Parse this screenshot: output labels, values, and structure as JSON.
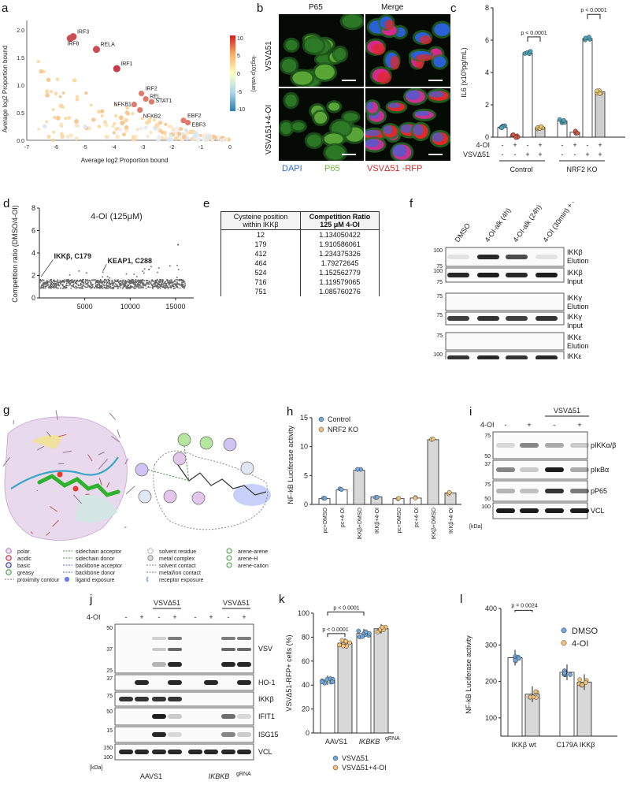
{
  "panel_labels": {
    "a": "a",
    "b": "b",
    "c": "c",
    "d": "d",
    "e": "e",
    "f": "f",
    "g": "g",
    "h": "h",
    "i": "i",
    "j": "j",
    "k": "k",
    "l": "l"
  },
  "panel_a": {
    "xlabel": "Average log2 Proportion bound",
    "ylabel": "Average log2 Proportion bound",
    "colorbar_label": "-log10(p-value)",
    "colorbar_ticks": [
      "10",
      "5",
      "0",
      "-5",
      "-10"
    ],
    "xticks": [
      "-7",
      "-6",
      "-5",
      "-4",
      "-3",
      "-2",
      "-1",
      "0"
    ],
    "yticks": [
      "0.0",
      "0.5",
      "1.0",
      "1.5",
      "2.0"
    ],
    "highlighted": [
      {
        "name": "IRF3",
        "x": -5.4,
        "y": 1.88
      },
      {
        "name": "IRF8",
        "x": -5.5,
        "y": 1.85
      },
      {
        "name": "RELA",
        "x": -4.6,
        "y": 1.65
      },
      {
        "name": "IRF1",
        "x": -3.9,
        "y": 1.3
      },
      {
        "name": "IRF2",
        "x": -3.05,
        "y": 0.85
      },
      {
        "name": "REL",
        "x": -2.9,
        "y": 0.75
      },
      {
        "name": "STAT1",
        "x": -2.7,
        "y": 0.7
      },
      {
        "name": "NFKB1",
        "x": -3.3,
        "y": 0.65
      },
      {
        "name": "NFKB2",
        "x": -3.1,
        "y": 0.55
      },
      {
        "name": "EBF2",
        "x": -1.6,
        "y": 0.36
      },
      {
        "name": "EBF3",
        "x": -1.45,
        "y": 0.32
      }
    ]
  },
  "panel_b": {
    "col_headers": [
      "P65",
      "Merge"
    ],
    "row_labels": [
      "VSVΔ51",
      "VSVΔ51+4-OI"
    ],
    "legend": [
      "DAPI",
      "P65",
      "VSVΔ51 -RFP"
    ],
    "legend_colors": [
      "#2f6fd6",
      "#6cbb3c",
      "#d42a2a"
    ]
  },
  "panel_c": {
    "chart_data": {
      "type": "bar",
      "ylabel": "IL6 (x10³pg/mL)",
      "ylim": [
        0,
        8
      ],
      "yticks": [
        "0",
        "2",
        "4",
        "6",
        "8"
      ],
      "groups": [
        "Control",
        "NRF2 KO"
      ],
      "row_labels": [
        "4-OI",
        "VSVΔ51"
      ],
      "treat_4OI": [
        "-",
        "+",
        "-",
        "+",
        "-",
        "+",
        "-",
        "+"
      ],
      "treat_VSV": [
        "-",
        "-",
        "+",
        "+",
        "-",
        "-",
        "+",
        "+"
      ],
      "values": [
        0.6,
        0.05,
        5.2,
        0.6,
        1.0,
        0.3,
        6.1,
        2.8
      ],
      "bar_fill": [
        "#ffffff",
        "#ffffff",
        "#ffffff",
        "#cfcfcf",
        "#ffffff",
        "#ffffff",
        "#ffffff",
        "#cfcfcf"
      ],
      "annotations": [
        "p < 0.0001",
        "p < 0.0001"
      ]
    }
  },
  "panel_d": {
    "chart_data": {
      "type": "scatter",
      "title": "4-OI (125μM)",
      "ylabel": "Competition ratio (DMSO/4-OI)",
      "ylim": [
        0,
        8
      ],
      "xlim": [
        0,
        17000
      ],
      "yticks": [
        "0",
        "2",
        "4",
        "6",
        "8"
      ],
      "xticks": [
        "5000",
        "10000",
        "15000"
      ],
      "annotations": [
        {
          "text": "IKKβ, C179",
          "x": 200,
          "y": 1.91
        },
        {
          "text": "KEAP1, C288",
          "x": 7000,
          "y": 2.4
        }
      ]
    }
  },
  "panel_e": {
    "chart_data": {
      "type": "table",
      "headers": [
        "Cysteine position within IKKβ",
        "Competition Ratio 125 μM 4-OI"
      ],
      "rows": [
        [
          "12",
          "1.134050422"
        ],
        [
          "179",
          "1.910586061"
        ],
        [
          "412",
          "1.234375326"
        ],
        [
          "464",
          "1.79272645"
        ],
        [
          "524",
          "1.152562779"
        ],
        [
          "716",
          "1.119579065"
        ],
        [
          "751",
          "1.085760276"
        ]
      ]
    }
  },
  "panel_f": {
    "lanes": [
      "DMSO",
      "4-OI-alk (4h)",
      "4-OI-alk (24h)",
      "4-OI (30min) + 4-OI-alk (4h)"
    ],
    "blots": [
      {
        "name": "IKKβ",
        "sub": "Elution",
        "mw": [
          "100",
          "75"
        ]
      },
      {
        "name": "IKKβ",
        "sub": "Input",
        "mw": [
          "100",
          "75"
        ]
      },
      {
        "name": "IKKγ",
        "sub": "Elution",
        "mw": [
          "75"
        ]
      },
      {
        "name": "IKKγ",
        "sub": "Input",
        "mw": [
          "75"
        ]
      },
      {
        "name": "IKKε",
        "sub": "Elution",
        "mw": [
          "75"
        ]
      },
      {
        "name": "IKKε",
        "sub": "Input",
        "mw": [
          "100"
        ]
      }
    ],
    "kda": "[kDa]"
  },
  "panel_g": {
    "legend": [
      {
        "sym": "polar",
        "label": "polar"
      },
      {
        "sym": "acidic",
        "label": "acidic"
      },
      {
        "sym": "basic",
        "label": "basic"
      },
      {
        "sym": "greasy",
        "label": "greasy"
      },
      {
        "sym": "contour",
        "label": "proximity contour"
      },
      {
        "sym": "sca",
        "label": "sidechain acceptor"
      },
      {
        "sym": "scd",
        "label": "sidechain donor"
      },
      {
        "sym": "bba",
        "label": "backbone acceptor"
      },
      {
        "sym": "bbd",
        "label": "backbone donor"
      },
      {
        "sym": "exp",
        "label": "ligand exposure"
      },
      {
        "sym": "solv",
        "label": "solvent residue"
      },
      {
        "sym": "metal",
        "label": "metal complex"
      },
      {
        "sym": "scont",
        "label": "solvent contact"
      },
      {
        "sym": "mion",
        "label": "metal/ion contact"
      },
      {
        "sym": "rexp",
        "label": "receptor exposure"
      },
      {
        "sym": "aa",
        "label": "arene-arene"
      },
      {
        "sym": "ah",
        "label": "arene-H"
      },
      {
        "sym": "ac",
        "label": "arene-cation"
      }
    ]
  },
  "panel_h": {
    "chart_data": {
      "type": "bar",
      "ylabel": "NF-kB Luciferase activity",
      "ylim": [
        0,
        15
      ],
      "yticks": [
        "0",
        "5",
        "10",
        "15"
      ],
      "categories": [
        "pc+DMSO",
        "pc+4-OI",
        "IKKβ+DMSO",
        "IKKβ+4-OI",
        "pc+DMSO",
        "pc+4-OI",
        "IKKβ+DMSO",
        "IKKβ+4-OI"
      ],
      "values": [
        1.0,
        2.5,
        5.9,
        1.3,
        1.0,
        1.1,
        11.2,
        2.0
      ],
      "series": [
        {
          "name": "Control"
        },
        {
          "name": "NRF2 KO"
        }
      ],
      "series_colors": [
        "#6fa8dc",
        "#f2c27a"
      ]
    }
  },
  "panel_i": {
    "header": "VSVΔ51",
    "row_label": "4-OI",
    "treat": [
      "-",
      "+",
      "-",
      "+"
    ],
    "blots": [
      {
        "name": "pIKKα/β",
        "mw": [
          "75",
          "50"
        ]
      },
      {
        "name": "pIκBα",
        "mw": [
          "37"
        ]
      },
      {
        "name": "pP65",
        "mw": [
          "75",
          "50"
        ]
      },
      {
        "name": "VCL",
        "mw": [
          "100"
        ]
      }
    ],
    "kda": "[kDa]"
  },
  "panel_j": {
    "headers": [
      "VSVΔ51",
      "VSVΔ51"
    ],
    "row_label": "4-OI",
    "treat": [
      "-",
      "+",
      "-",
      "+",
      "-",
      "+",
      "-",
      "+"
    ],
    "groups": [
      "AAVS1",
      "IKBKB"
    ],
    "group_sup": "gRNA",
    "blots": [
      {
        "name": "VSV",
        "mw": [
          "50",
          "37",
          "25"
        ]
      },
      {
        "name": "HO-1",
        "mw": [
          "37"
        ]
      },
      {
        "name": "IKKβ",
        "mw": [
          "75"
        ]
      },
      {
        "name": "IFIT1",
        "mw": [
          "50"
        ]
      },
      {
        "name": "ISG15",
        "mw": [
          "15"
        ]
      },
      {
        "name": "VCL",
        "mw": [
          "150",
          "100"
        ]
      }
    ],
    "kda": "[kDa]"
  },
  "panel_k": {
    "chart_data": {
      "type": "bar",
      "ylabel": "VSVΔ51-RFP+ cells (%)",
      "ylim": [
        0,
        100
      ],
      "yticks": [
        "0",
        "20",
        "40",
        "60",
        "80",
        "100"
      ],
      "categories": [
        "AAVS1",
        "IKBKB"
      ],
      "category_sup": [
        "",
        "gRNA"
      ],
      "series": [
        {
          "name": "VSVΔ51",
          "values": [
            44,
            83
          ]
        },
        {
          "name": "VSVΔ51+4-OI",
          "values": [
            75,
            87
          ]
        }
      ],
      "series_colors": [
        "#6fa8dc",
        "#f2c27a"
      ],
      "annotations": [
        "p < 0.0001",
        "p < 0.0001"
      ]
    }
  },
  "panel_l": {
    "chart_data": {
      "type": "bar",
      "ylabel": "NF-kB Luciferase activity",
      "ylim": [
        0,
        400
      ],
      "yticks": [
        "100",
        "200",
        "300",
        "400"
      ],
      "categories": [
        "IKKβ wt",
        "C179A IKKβ"
      ],
      "series": [
        {
          "name": "DMSO",
          "values": [
            265,
            225
          ]
        },
        {
          "name": "4-OI",
          "values": [
            165,
            198
          ]
        }
      ],
      "series_colors": [
        "#6fa8dc",
        "#f2c27a"
      ],
      "annotations": [
        "p = 0.0024"
      ]
    }
  }
}
